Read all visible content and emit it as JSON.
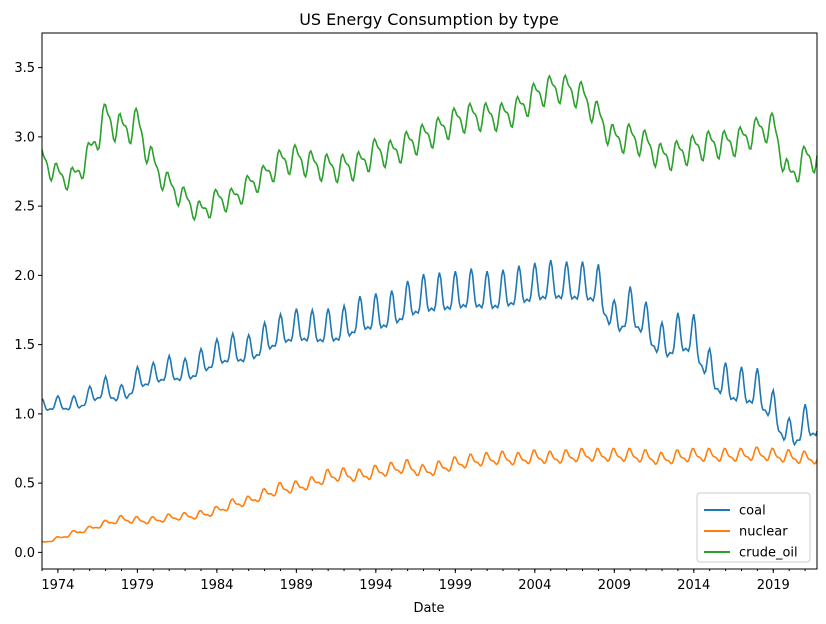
{
  "chart_data": {
    "type": "line",
    "title": "US Energy Consumption by type",
    "xlabel": "Date",
    "ylabel": "",
    "xlim": [
      "1973-01",
      "2021-10"
    ],
    "ylim": [
      -0.12,
      3.75
    ],
    "x_ticks": [
      "1974",
      "1979",
      "1984",
      "1989",
      "1994",
      "1999",
      "2004",
      "2009",
      "2014",
      "2019"
    ],
    "y_ticks": [
      "0.0",
      "0.5",
      "1.0",
      "1.5",
      "2.0",
      "2.5",
      "3.0",
      "3.5"
    ],
    "legend_position": "lower-right",
    "grid": false,
    "x": [
      "1973",
      "1974",
      "1975",
      "1976",
      "1977",
      "1978",
      "1979",
      "1980",
      "1981",
      "1982",
      "1983",
      "1984",
      "1985",
      "1986",
      "1987",
      "1988",
      "1989",
      "1990",
      "1991",
      "1992",
      "1993",
      "1994",
      "1995",
      "1996",
      "1997",
      "1998",
      "1999",
      "2000",
      "2001",
      "2002",
      "2003",
      "2004",
      "2005",
      "2006",
      "2007",
      "2008",
      "2009",
      "2010",
      "2011",
      "2012",
      "2013",
      "2014",
      "2015",
      "2016",
      "2017",
      "2018",
      "2019",
      "2020",
      "2021"
    ],
    "series": [
      {
        "name": "coal",
        "color": "#1f77b4",
        "values": [
          1.05,
          1.07,
          1.06,
          1.12,
          1.18,
          1.12,
          1.24,
          1.27,
          1.31,
          1.29,
          1.35,
          1.42,
          1.45,
          1.44,
          1.52,
          1.58,
          1.61,
          1.6,
          1.6,
          1.62,
          1.69,
          1.7,
          1.72,
          1.79,
          1.83,
          1.84,
          1.85,
          1.87,
          1.85,
          1.86,
          1.89,
          1.91,
          1.93,
          1.92,
          1.92,
          1.9,
          1.65,
          1.75,
          1.64,
          1.48,
          1.55,
          1.54,
          1.3,
          1.2,
          1.17,
          1.16,
          1.02,
          0.82,
          0.92
        ],
        "amplitude": [
          0.06,
          0.06,
          0.07,
          0.08,
          0.09,
          0.09,
          0.1,
          0.1,
          0.11,
          0.11,
          0.12,
          0.12,
          0.13,
          0.13,
          0.14,
          0.14,
          0.15,
          0.15,
          0.16,
          0.16,
          0.16,
          0.17,
          0.17,
          0.17,
          0.18,
          0.18,
          0.18,
          0.18,
          0.18,
          0.18,
          0.18,
          0.18,
          0.18,
          0.18,
          0.18,
          0.18,
          0.17,
          0.17,
          0.17,
          0.18,
          0.18,
          0.18,
          0.17,
          0.17,
          0.17,
          0.17,
          0.15,
          0.15,
          0.15
        ]
      },
      {
        "name": "nuclear",
        "color": "#ff7f0e",
        "values": [
          0.07,
          0.1,
          0.14,
          0.17,
          0.21,
          0.24,
          0.23,
          0.23,
          0.25,
          0.26,
          0.27,
          0.3,
          0.35,
          0.37,
          0.42,
          0.46,
          0.47,
          0.5,
          0.55,
          0.56,
          0.55,
          0.58,
          0.6,
          0.62,
          0.58,
          0.61,
          0.64,
          0.66,
          0.67,
          0.68,
          0.67,
          0.69,
          0.68,
          0.69,
          0.7,
          0.7,
          0.7,
          0.7,
          0.69,
          0.67,
          0.69,
          0.7,
          0.7,
          0.7,
          0.7,
          0.71,
          0.7,
          0.69,
          0.68
        ],
        "amplitude": [
          0.01,
          0.015,
          0.02,
          0.02,
          0.025,
          0.03,
          0.03,
          0.03,
          0.03,
          0.03,
          0.035,
          0.035,
          0.04,
          0.04,
          0.045,
          0.05,
          0.05,
          0.05,
          0.055,
          0.055,
          0.055,
          0.055,
          0.055,
          0.055,
          0.055,
          0.055,
          0.055,
          0.055,
          0.055,
          0.055,
          0.055,
          0.055,
          0.055,
          0.055,
          0.055,
          0.055,
          0.055,
          0.055,
          0.055,
          0.055,
          0.055,
          0.055,
          0.055,
          0.055,
          0.055,
          0.055,
          0.055,
          0.055,
          0.055
        ]
      },
      {
        "name": "crude_oil",
        "color": "#2ca02c",
        "values": [
          2.85,
          2.72,
          2.7,
          2.88,
          3.15,
          3.05,
          3.1,
          2.8,
          2.65,
          2.55,
          2.45,
          2.55,
          2.55,
          2.65,
          2.72,
          2.82,
          2.85,
          2.8,
          2.78,
          2.78,
          2.8,
          2.9,
          2.88,
          2.95,
          3.0,
          3.05,
          3.12,
          3.15,
          3.15,
          3.15,
          3.2,
          3.3,
          3.35,
          3.35,
          3.3,
          3.15,
          2.98,
          3.0,
          2.95,
          2.85,
          2.88,
          2.92,
          2.95,
          2.95,
          2.98,
          3.05,
          3.08,
          2.7,
          2.85
        ],
        "amplitude": [
          0.1,
          0.1,
          0.1,
          0.12,
          0.14,
          0.14,
          0.14,
          0.12,
          0.1,
          0.1,
          0.1,
          0.1,
          0.1,
          0.1,
          0.1,
          0.12,
          0.12,
          0.12,
          0.12,
          0.12,
          0.12,
          0.12,
          0.12,
          0.12,
          0.12,
          0.12,
          0.12,
          0.12,
          0.12,
          0.12,
          0.12,
          0.12,
          0.12,
          0.12,
          0.12,
          0.12,
          0.12,
          0.12,
          0.12,
          0.12,
          0.12,
          0.12,
          0.12,
          0.12,
          0.12,
          0.12,
          0.12,
          0.12,
          0.12
        ]
      }
    ]
  }
}
